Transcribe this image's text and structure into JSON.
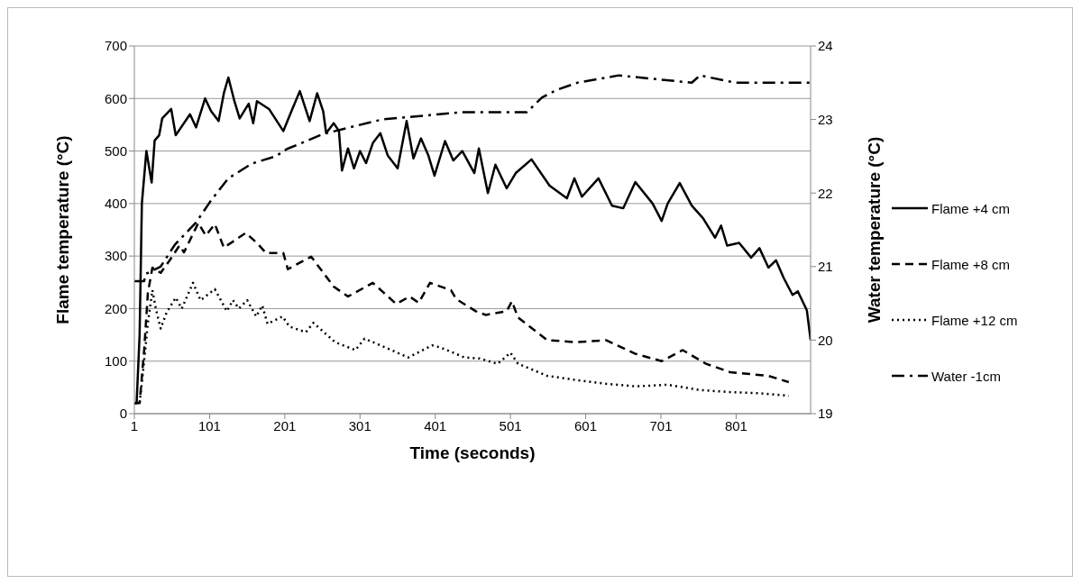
{
  "chart_data": {
    "type": "line",
    "xlabel": "Time (seconds)",
    "ylabel": "Flame temperature (°C)",
    "y2label": "Water temperature (°C)",
    "xlim": [
      1,
      900
    ],
    "xticks": [
      1,
      101,
      201,
      301,
      401,
      501,
      601,
      701,
      801
    ],
    "ylim": [
      0,
      700
    ],
    "yticks": [
      0,
      100,
      200,
      300,
      400,
      500,
      600,
      700
    ],
    "y2lim": [
      19,
      24
    ],
    "y2ticks": [
      19,
      20,
      21,
      22,
      23,
      24
    ],
    "grid": "y",
    "legend": "right",
    "marker": "none",
    "series": [
      {
        "name": "Flame +4 cm",
        "color": "#000000",
        "line_style": "solid",
        "x": [
          1,
          4,
          8,
          11,
          17,
          24,
          28,
          34,
          38,
          50,
          56,
          75,
          83,
          95,
          103,
          113,
          120,
          126,
          134,
          141,
          153,
          159,
          164,
          180,
          199,
          211,
          221,
          234,
          244,
          252,
          256,
          266,
          273,
          277,
          285,
          293,
          301,
          309,
          318,
          328,
          338,
          351,
          363,
          372,
          382,
          392,
          400,
          414,
          425,
          437,
          453,
          459,
          471,
          481,
          496,
          508,
          529,
          553,
          576,
          586,
          596,
          618,
          636,
          651,
          667,
          690,
          702,
          710,
          726,
          742,
          757,
          773,
          781,
          789,
          805,
          821,
          832,
          844,
          854,
          864,
          876,
          883,
          895,
          900
        ],
        "values": [
          20,
          20,
          150,
          400,
          500,
          440,
          520,
          530,
          562,
          580,
          530,
          570,
          545,
          600,
          576,
          557,
          610,
          640,
          595,
          562,
          590,
          553,
          595,
          580,
          538,
          580,
          614,
          557,
          610,
          576,
          534,
          553,
          538,
          463,
          505,
          467,
          500,
          477,
          515,
          534,
          491,
          467,
          557,
          486,
          524,
          491,
          453,
          519,
          482,
          500,
          458,
          505,
          420,
          474,
          429,
          458,
          484,
          434,
          410,
          448,
          413,
          448,
          396,
          391,
          441,
          400,
          367,
          400,
          439,
          396,
          372,
          335,
          358,
          320,
          325,
          297,
          315,
          278,
          292,
          259,
          226,
          233,
          197,
          140
        ]
      },
      {
        "name": "Flame +8 cm",
        "color": "#000000",
        "line_style": "dashed",
        "x": [
          1,
          8,
          14,
          19,
          25,
          36,
          48,
          61,
          67,
          86,
          96,
          108,
          120,
          149,
          164,
          176,
          199,
          205,
          236,
          266,
          285,
          318,
          332,
          349,
          367,
          379,
          394,
          422,
          429,
          455,
          468,
          496,
          503,
          511,
          550,
          589,
          628,
          667,
          702,
          730,
          761,
          793,
          844,
          871
        ],
        "values": [
          20,
          20,
          120,
          230,
          278,
          268,
          292,
          320,
          307,
          363,
          339,
          361,
          316,
          344,
          325,
          306,
          306,
          275,
          299,
          242,
          223,
          249,
          231,
          209,
          223,
          211,
          249,
          235,
          218,
          195,
          188,
          195,
          214,
          183,
          140,
          136,
          140,
          114,
          100,
          121,
          95,
          79,
          72,
          60
        ]
      },
      {
        "name": "Flame +12 cm",
        "color": "#000000",
        "line_style": "dotted",
        "x": [
          1,
          8,
          14,
          19,
          25,
          30,
          36,
          44,
          56,
          64,
          79,
          89,
          108,
          124,
          132,
          140,
          151,
          163,
          171,
          178,
          198,
          207,
          229,
          239,
          268,
          295,
          307,
          338,
          365,
          397,
          408,
          440,
          460,
          484,
          501,
          511,
          550,
          589,
          628,
          667,
          710,
          753,
          793,
          832,
          871
        ],
        "values": [
          20,
          20,
          100,
          173,
          235,
          197,
          162,
          193,
          221,
          200,
          249,
          216,
          237,
          195,
          216,
          200,
          216,
          185,
          206,
          171,
          185,
          166,
          155,
          173,
          136,
          121,
          143,
          124,
          107,
          130,
          126,
          107,
          105,
          95,
          116,
          95,
          72,
          64,
          57,
          52,
          55,
          45,
          41,
          39,
          34
        ]
      },
      {
        "name": "Water -1cm",
        "color": "#000000",
        "line_style": "dashdot",
        "axis": "y2",
        "x": [
          1,
          14,
          16,
          36,
          55,
          83,
          103,
          126,
          157,
          189,
          204,
          228,
          251,
          290,
          330,
          437,
          523,
          543,
          562,
          590,
          645,
          742,
          753,
          800,
          900
        ],
        "values": [
          20.8,
          20.8,
          20.9,
          21.0,
          21.3,
          21.6,
          21.9,
          22.2,
          22.4,
          22.5,
          22.6,
          22.7,
          22.8,
          22.9,
          23.0,
          23.1,
          23.1,
          23.3,
          23.4,
          23.5,
          23.6,
          23.5,
          23.6,
          23.5,
          23.5
        ]
      }
    ]
  }
}
